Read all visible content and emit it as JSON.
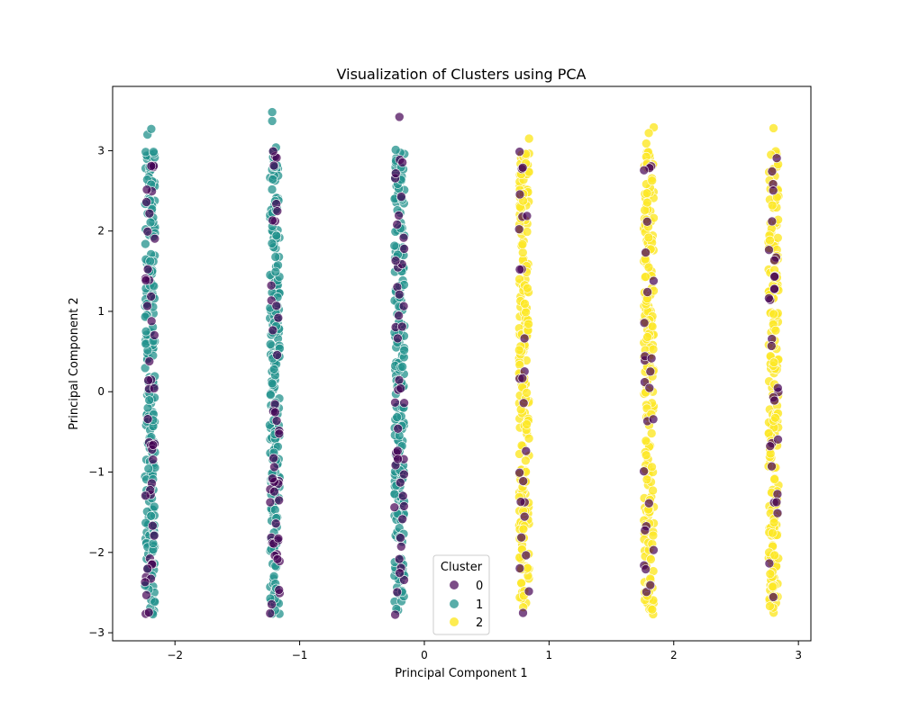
{
  "chart_data": {
    "type": "scatter",
    "title": "Visualization of Clusters using PCA",
    "xlabel": "Principal Component 1",
    "ylabel": "Principal Component 2",
    "xlim": [
      -2.5,
      3.1
    ],
    "ylim": [
      -3.1,
      3.8
    ],
    "xticks": [
      -2,
      -1,
      0,
      1,
      2,
      3
    ],
    "xtick_labels": [
      "−2",
      "−1",
      "0",
      "1",
      "2",
      "3"
    ],
    "yticks": [
      -3,
      -2,
      -1,
      0,
      1,
      2,
      3
    ],
    "ytick_labels": [
      "−3",
      "−2",
      "−1",
      "0",
      "1",
      "2",
      "3"
    ],
    "grid": false,
    "legend": {
      "title": "Cluster",
      "position": "bottom-center",
      "entries": [
        "0",
        "1",
        "2"
      ]
    },
    "columns_x": [
      -2.2,
      -1.2,
      -0.2,
      0.8,
      1.8,
      2.8
    ],
    "column_y_range": [
      -2.78,
      3.0
    ],
    "series": [
      {
        "name": "0",
        "color": "#440154",
        "opacity": 0.7,
        "points_per_column": [
          45,
          45,
          45,
          25,
          25,
          30
        ],
        "outliers": [
          [
            -0.2,
            3.42
          ]
        ]
      },
      {
        "name": "1",
        "color": "#21918c",
        "opacity": 0.75,
        "points_per_column": [
          210,
          210,
          210,
          0,
          0,
          0
        ],
        "outliers": [
          [
            -2.22,
            3.2
          ],
          [
            -2.19,
            3.27
          ],
          [
            -1.22,
            3.48
          ],
          [
            -1.22,
            3.37
          ],
          [
            -1.19,
            3.04
          ],
          [
            -1.2,
            2.8
          ],
          [
            -0.23,
            3.01
          ]
        ]
      },
      {
        "name": "2",
        "color": "#fde725",
        "opacity": 0.8,
        "points_per_column": [
          0,
          0,
          0,
          210,
          210,
          210
        ],
        "outliers": [
          [
            0.84,
            3.15
          ],
          [
            1.84,
            3.29
          ],
          [
            1.8,
            3.22
          ],
          [
            1.78,
            3.09
          ],
          [
            2.8,
            3.28
          ],
          [
            2.78,
            2.95
          ]
        ]
      }
    ]
  }
}
